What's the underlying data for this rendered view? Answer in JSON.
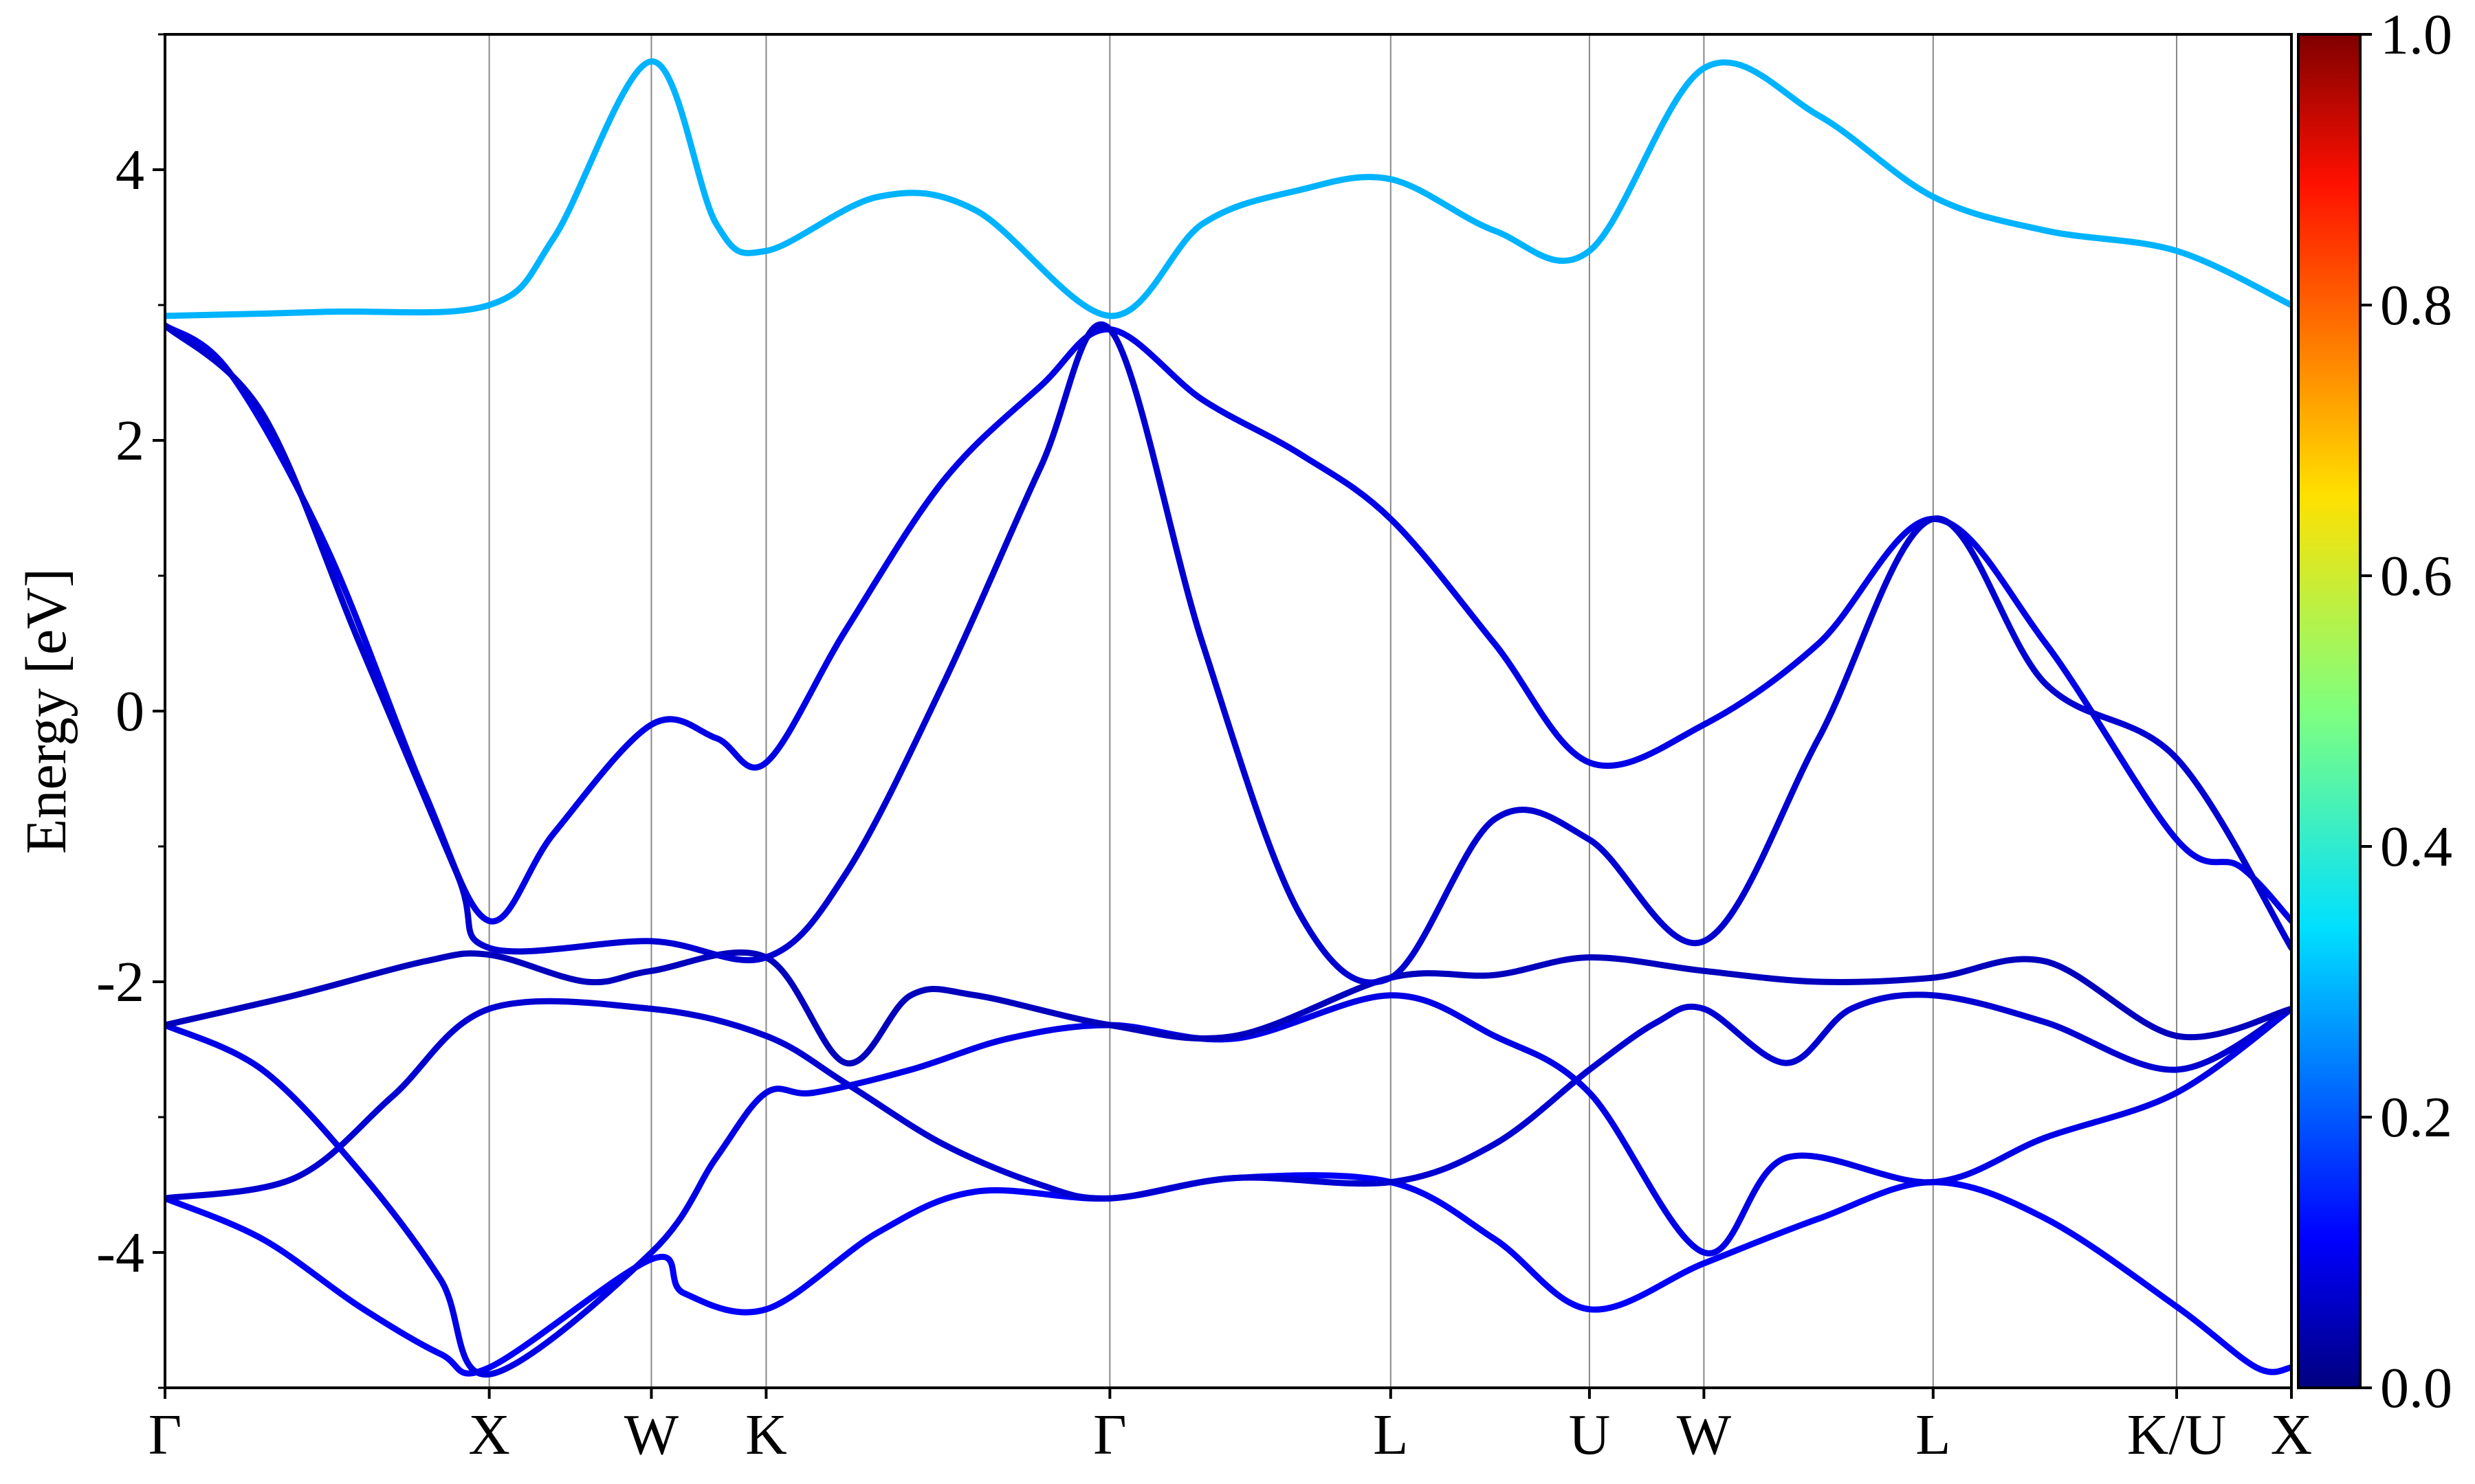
{
  "chart_data": {
    "type": "line",
    "title": "",
    "xlabel": "",
    "ylabel": "Energy [eV]",
    "ylim": [
      -5,
      5
    ],
    "y_ticks": [
      -4,
      -2,
      0,
      2,
      4
    ],
    "y_tick_labels": [
      "-4",
      "-2",
      "0",
      "2",
      "4"
    ],
    "k_path": [
      {
        "label": "Γ",
        "k": 0.0
      },
      {
        "label": "X",
        "k": 1.0
      },
      {
        "label": "W",
        "k": 1.5
      },
      {
        "label": "K",
        "k": 1.854
      },
      {
        "label": "Γ",
        "k": 2.914
      },
      {
        "label": "L",
        "k": 3.78
      },
      {
        "label": "U",
        "k": 4.393
      },
      {
        "label": "W",
        "k": 4.746
      },
      {
        "label": "L",
        "k": 5.453
      },
      {
        "label": "K/U",
        "k": 6.204
      },
      {
        "label": "X",
        "k": 6.558
      }
    ],
    "grid": "vertical lines at high-symmetry points",
    "colorbar": {
      "min": 0.0,
      "max": 1.0,
      "ticks": [
        0.0,
        0.2,
        0.4,
        0.6,
        0.8,
        1.0
      ],
      "tick_labels": [
        "0.0",
        "0.2",
        "0.4",
        "0.6",
        "0.8",
        "1.0"
      ],
      "colormap": "jet"
    },
    "series": [
      {
        "values": [
          [
            0,
            -3.6
          ],
          [
            0.3,
            -3.9
          ],
          [
            0.6,
            -4.4
          ],
          [
            0.85,
            -4.75
          ],
          [
            1.0,
            -4.85
          ],
          [
            1.5,
            -4.05
          ],
          [
            1.6,
            -4.3
          ],
          [
            1.854,
            -4.42
          ],
          [
            2.2,
            -3.85
          ],
          [
            2.5,
            -3.55
          ],
          [
            2.914,
            -3.6
          ],
          [
            3.3,
            -3.45
          ],
          [
            3.78,
            -3.48
          ],
          [
            4.1,
            -3.9
          ],
          [
            4.393,
            -4.42
          ],
          [
            4.746,
            -4.08
          ],
          [
            5.1,
            -3.75
          ],
          [
            5.453,
            -3.48
          ],
          [
            5.8,
            -3.75
          ],
          [
            6.204,
            -4.4
          ],
          [
            6.45,
            -4.85
          ],
          [
            6.558,
            -4.85
          ]
        ],
        "projection": 0.12
      },
      {
        "values": [
          [
            0,
            -3.6
          ],
          [
            0.4,
            -3.45
          ],
          [
            0.7,
            -2.85
          ],
          [
            1.0,
            -2.2
          ],
          [
            1.5,
            -2.2
          ],
          [
            1.854,
            -2.4
          ],
          [
            2.1,
            -2.75
          ],
          [
            2.4,
            -3.2
          ],
          [
            2.7,
            -3.5
          ],
          [
            2.914,
            -3.6
          ],
          [
            3.3,
            -3.45
          ],
          [
            3.78,
            -3.48
          ],
          [
            4.1,
            -3.2
          ],
          [
            4.393,
            -2.65
          ],
          [
            4.6,
            -2.3
          ],
          [
            4.746,
            -2.2
          ],
          [
            5.0,
            -2.6
          ],
          [
            5.2,
            -2.2
          ],
          [
            5.453,
            -2.1
          ],
          [
            5.8,
            -2.3
          ],
          [
            6.204,
            -2.65
          ],
          [
            6.558,
            -2.2
          ]
        ],
        "projection": 0.08
      },
      {
        "values": [
          [
            0,
            -2.32
          ],
          [
            0.3,
            -2.65
          ],
          [
            0.6,
            -3.4
          ],
          [
            0.85,
            -4.2
          ],
          [
            1.0,
            -4.9
          ],
          [
            1.5,
            -4.0
          ],
          [
            1.7,
            -3.3
          ],
          [
            1.854,
            -2.82
          ],
          [
            2.0,
            -2.82
          ],
          [
            2.3,
            -2.65
          ],
          [
            2.6,
            -2.42
          ],
          [
            2.914,
            -2.32
          ],
          [
            3.3,
            -2.42
          ],
          [
            3.78,
            -2.1
          ],
          [
            4.1,
            -2.4
          ],
          [
            4.393,
            -2.82
          ],
          [
            4.746,
            -4.0
          ],
          [
            5.0,
            -3.3
          ],
          [
            5.453,
            -3.48
          ],
          [
            5.8,
            -3.15
          ],
          [
            6.204,
            -2.82
          ],
          [
            6.558,
            -2.2
          ]
        ],
        "projection": 0.1
      },
      {
        "values": [
          [
            0,
            -2.32
          ],
          [
            0.4,
            -2.1
          ],
          [
            0.8,
            -1.85
          ],
          [
            1.0,
            -1.8
          ],
          [
            1.3,
            -2.0
          ],
          [
            1.5,
            -1.92
          ],
          [
            1.854,
            -1.82
          ],
          [
            2.1,
            -2.6
          ],
          [
            2.3,
            -2.1
          ],
          [
            2.5,
            -2.1
          ],
          [
            2.914,
            -2.32
          ],
          [
            3.3,
            -2.4
          ],
          [
            3.78,
            -1.97
          ],
          [
            4.1,
            -1.95
          ],
          [
            4.393,
            -1.82
          ],
          [
            4.746,
            -1.92
          ],
          [
            5.1,
            -2.0
          ],
          [
            5.453,
            -1.97
          ],
          [
            5.8,
            -1.85
          ],
          [
            6.204,
            -2.4
          ],
          [
            6.558,
            -2.2
          ]
        ],
        "projection": 0.06
      },
      {
        "values": [
          [
            0,
            2.85
          ],
          [
            0.2,
            2.5
          ],
          [
            0.5,
            1.2
          ],
          [
            0.8,
            -0.6
          ],
          [
            1.0,
            -1.55
          ],
          [
            1.2,
            -0.9
          ],
          [
            1.5,
            -0.1
          ],
          [
            1.7,
            -0.2
          ],
          [
            1.854,
            -0.38
          ],
          [
            2.1,
            0.6
          ],
          [
            2.4,
            1.7
          ],
          [
            2.7,
            2.4
          ],
          [
            2.914,
            2.82
          ],
          [
            3.2,
            2.3
          ],
          [
            3.5,
            1.9
          ],
          [
            3.78,
            1.42
          ],
          [
            4.1,
            0.5
          ],
          [
            4.393,
            -0.38
          ],
          [
            4.746,
            -0.1
          ],
          [
            5.1,
            0.5
          ],
          [
            5.453,
            1.42
          ],
          [
            5.8,
            0.5
          ],
          [
            6.204,
            -0.95
          ],
          [
            6.4,
            -1.15
          ],
          [
            6.558,
            -1.55
          ]
        ],
        "projection": 0.1
      },
      {
        "values": [
          [
            0,
            2.85
          ],
          [
            0.3,
            2.2
          ],
          [
            0.6,
            0.5
          ],
          [
            0.9,
            -1.2
          ],
          [
            1.0,
            -1.75
          ],
          [
            1.5,
            -1.7
          ],
          [
            1.854,
            -1.82
          ],
          [
            2.1,
            -1.2
          ],
          [
            2.4,
            0.2
          ],
          [
            2.7,
            1.8
          ],
          [
            2.914,
            2.82
          ],
          [
            3.2,
            0.5
          ],
          [
            3.5,
            -1.5
          ],
          [
            3.78,
            -1.97
          ],
          [
            4.1,
            -0.8
          ],
          [
            4.393,
            -0.95
          ],
          [
            4.746,
            -1.7
          ],
          [
            5.1,
            -0.2
          ],
          [
            5.453,
            1.42
          ],
          [
            5.8,
            0.2
          ],
          [
            6.204,
            -0.35
          ],
          [
            6.558,
            -1.75
          ]
        ],
        "projection": 0.08
      },
      {
        "values": [
          [
            0,
            2.92
          ],
          [
            0.5,
            2.95
          ],
          [
            1.0,
            3.0
          ],
          [
            1.2,
            3.5
          ],
          [
            1.5,
            4.8
          ],
          [
            1.7,
            3.6
          ],
          [
            1.854,
            3.4
          ],
          [
            2.2,
            3.8
          ],
          [
            2.5,
            3.7
          ],
          [
            2.914,
            2.92
          ],
          [
            3.2,
            3.6
          ],
          [
            3.5,
            3.85
          ],
          [
            3.78,
            3.93
          ],
          [
            4.1,
            3.55
          ],
          [
            4.393,
            3.4
          ],
          [
            4.746,
            4.75
          ],
          [
            5.1,
            4.4
          ],
          [
            5.453,
            3.8
          ],
          [
            5.8,
            3.55
          ],
          [
            6.204,
            3.4
          ],
          [
            6.558,
            3.0
          ]
        ],
        "projection": 0.3
      }
    ]
  }
}
